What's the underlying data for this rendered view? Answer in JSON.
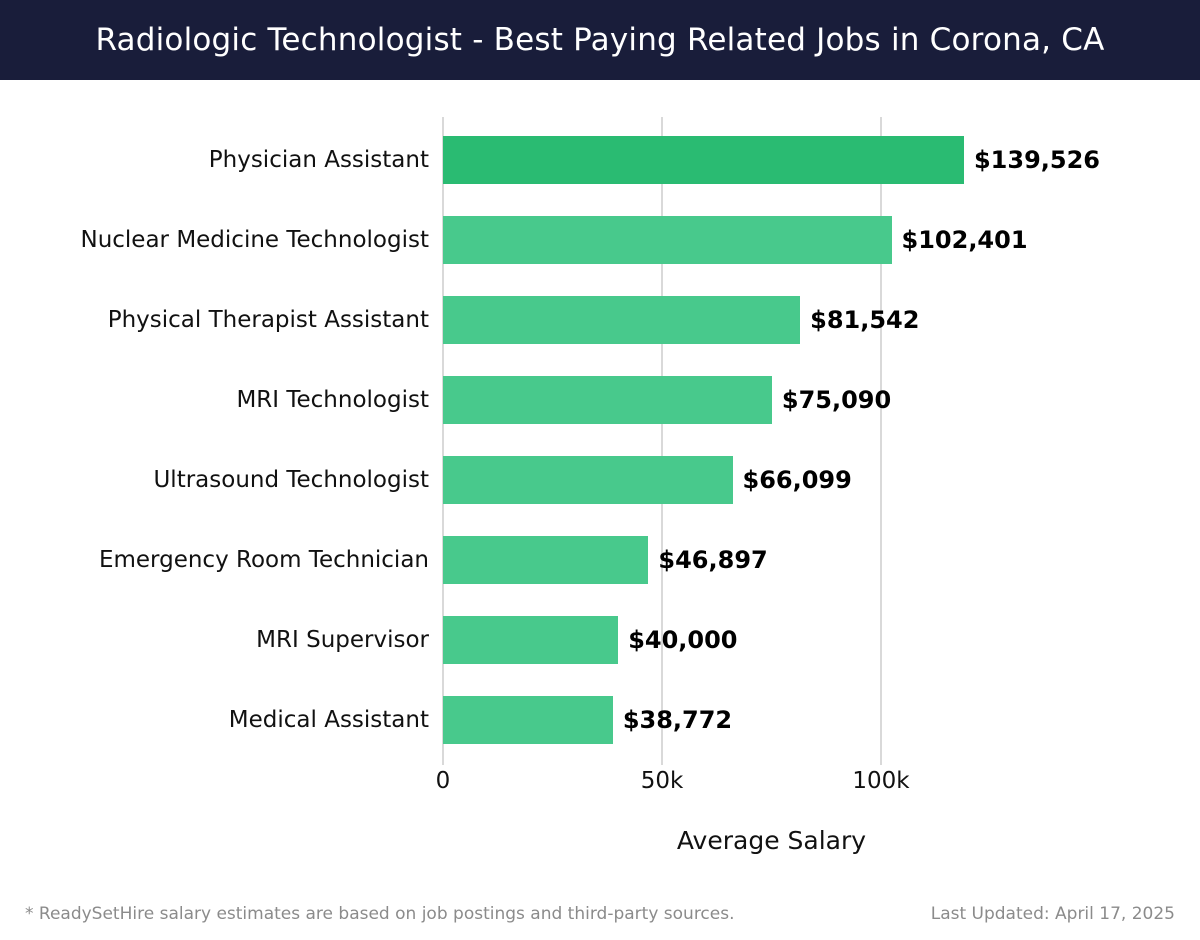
{
  "header": {
    "title": "Radiologic Technologist - Best Paying Related Jobs in Corona, CA",
    "bg_color": "#191d3a",
    "text_color": "#ffffff"
  },
  "chart_data": {
    "type": "bar",
    "orientation": "horizontal",
    "title": "Radiologic Technologist - Best Paying Related Jobs in Corona, CA",
    "categories": [
      "Physician Assistant",
      "Nuclear Medicine Technologist",
      "Physical Therapist Assistant",
      "MRI Technologist",
      "Ultrasound Technologist",
      "Emergency Room Technician",
      "MRI Supervisor",
      "Medical Assistant"
    ],
    "values": [
      139526,
      102401,
      81542,
      75090,
      66099,
      46897,
      40000,
      38772
    ],
    "value_labels": [
      "$139,526",
      "$102,401",
      "$81,542",
      "$75,090",
      "$66,099",
      "$46,897",
      "$40,000",
      "$38,772"
    ],
    "xlabel": "Average Salary",
    "ylabel": "",
    "xlim": [
      0,
      150000
    ],
    "x_ticks": [
      {
        "value": 0,
        "label": "0"
      },
      {
        "value": 50000,
        "label": "50k"
      },
      {
        "value": 100000,
        "label": "100k"
      }
    ],
    "grid": true,
    "gridline_color": "#d9d9d9",
    "bar_color": "#48c98c",
    "highlight_color": "#2abb72",
    "highlight_index": 0,
    "legend": "none"
  },
  "footer": {
    "note": "* ReadySetHire salary estimates are based on job postings and third-party sources.",
    "updated": "Last Updated: April 17, 2025"
  }
}
